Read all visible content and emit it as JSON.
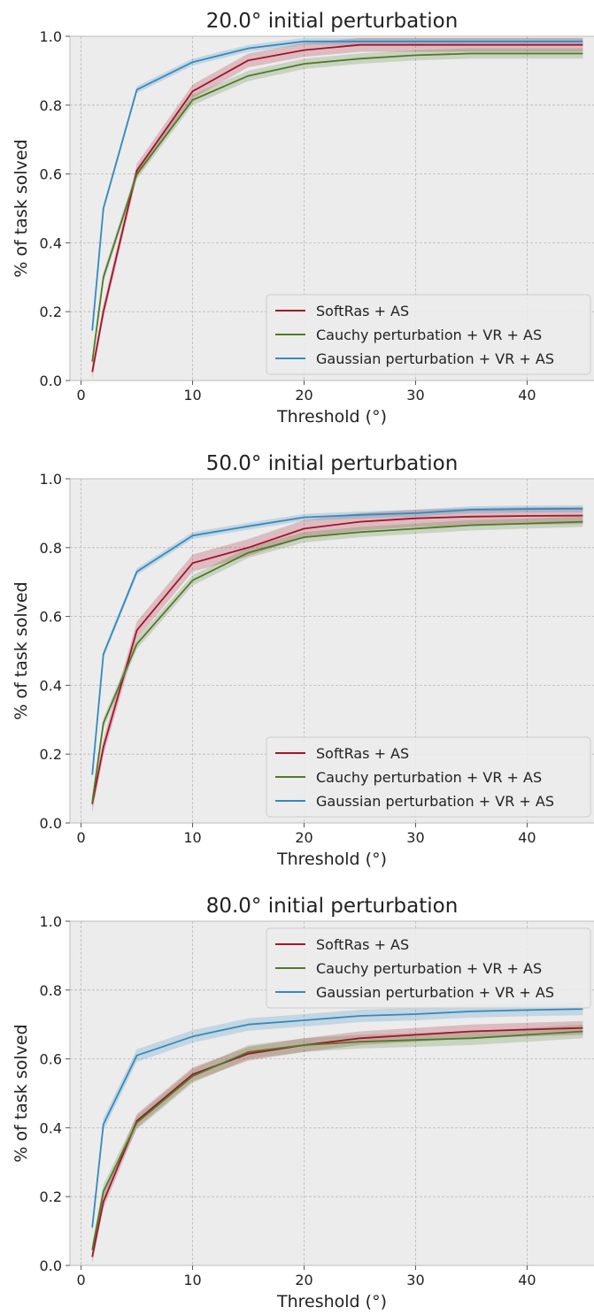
{
  "chart_data": [
    {
      "type": "line",
      "title": "20.0° initial perturbation",
      "xlabel": "Threshold (°)",
      "ylabel": "% of task solved",
      "xlim": [
        -1,
        46
      ],
      "ylim": [
        0,
        1.0
      ],
      "xticks": [
        0,
        10,
        20,
        30,
        40
      ],
      "yticks": [
        0.0,
        0.2,
        0.4,
        0.6,
        0.8,
        1.0
      ],
      "xtick_labels": [
        "0",
        "10",
        "20",
        "30",
        "40"
      ],
      "ytick_labels": [
        "0.0",
        "0.2",
        "0.4",
        "0.6",
        "0.8",
        "1.0"
      ],
      "grid": true,
      "legend_position": "lower-right",
      "x": [
        1,
        2,
        5,
        10,
        15,
        20,
        25,
        30,
        35,
        40,
        45
      ],
      "series": [
        {
          "name": "SoftRas + AS",
          "color": "#a3132b",
          "values": [
            0.025,
            0.2,
            0.61,
            0.84,
            0.93,
            0.96,
            0.975,
            0.975,
            0.975,
            0.975,
            0.975
          ],
          "band": 0.02
        },
        {
          "name": "Cauchy perturbation + VR + AS",
          "color": "#4f7a28",
          "values": [
            0.055,
            0.3,
            0.6,
            0.815,
            0.885,
            0.92,
            0.935,
            0.945,
            0.95,
            0.95,
            0.95
          ],
          "band": 0.015
        },
        {
          "name": "Gaussian perturbation + VR + AS",
          "color": "#348abd",
          "values": [
            0.145,
            0.5,
            0.845,
            0.925,
            0.965,
            0.985,
            0.985,
            0.985,
            0.985,
            0.985,
            0.985
          ],
          "band": 0.01
        }
      ]
    },
    {
      "type": "line",
      "title": "50.0° initial perturbation",
      "xlabel": "Threshold (°)",
      "ylabel": "% of task solved",
      "xlim": [
        -1,
        46
      ],
      "ylim": [
        0,
        1.0
      ],
      "xticks": [
        0,
        10,
        20,
        30,
        40
      ],
      "yticks": [
        0.0,
        0.2,
        0.4,
        0.6,
        0.8,
        1.0
      ],
      "xtick_labels": [
        "0",
        "10",
        "20",
        "30",
        "40"
      ],
      "ytick_labels": [
        "0.0",
        "0.2",
        "0.4",
        "0.6",
        "0.8",
        "1.0"
      ],
      "grid": true,
      "legend_position": "lower-right",
      "x": [
        1,
        2,
        5,
        10,
        15,
        20,
        25,
        30,
        35,
        40,
        45
      ],
      "series": [
        {
          "name": "SoftRas + AS",
          "color": "#a3132b",
          "values": [
            0.055,
            0.22,
            0.56,
            0.755,
            0.8,
            0.855,
            0.875,
            0.885,
            0.89,
            0.892,
            0.893
          ],
          "band": 0.025
        },
        {
          "name": "Cauchy perturbation + VR + AS",
          "color": "#4f7a28",
          "values": [
            0.06,
            0.29,
            0.52,
            0.705,
            0.785,
            0.83,
            0.845,
            0.855,
            0.865,
            0.87,
            0.875
          ],
          "band": 0.015
        },
        {
          "name": "Gaussian perturbation + VR + AS",
          "color": "#348abd",
          "values": [
            0.14,
            0.49,
            0.73,
            0.835,
            0.862,
            0.888,
            0.895,
            0.9,
            0.91,
            0.912,
            0.913
          ],
          "band": 0.01
        }
      ]
    },
    {
      "type": "line",
      "title": "80.0° initial perturbation",
      "xlabel": "Threshold (°)",
      "ylabel": "% of task solved",
      "xlim": [
        -1,
        46
      ],
      "ylim": [
        0,
        1.0
      ],
      "xticks": [
        0,
        10,
        20,
        30,
        40
      ],
      "yticks": [
        0.0,
        0.2,
        0.4,
        0.6,
        0.8,
        1.0
      ],
      "xtick_labels": [
        "0",
        "10",
        "20",
        "30",
        "40"
      ],
      "ytick_labels": [
        "0.0",
        "0.2",
        "0.4",
        "0.6",
        "0.8",
        "1.0"
      ],
      "grid": true,
      "legend_position": "upper-right",
      "x": [
        1,
        2,
        5,
        10,
        15,
        20,
        25,
        30,
        35,
        40,
        45
      ],
      "series": [
        {
          "name": "SoftRas + AS",
          "color": "#a3132b",
          "values": [
            0.025,
            0.185,
            0.42,
            0.555,
            0.615,
            0.64,
            0.66,
            0.67,
            0.68,
            0.685,
            0.69
          ],
          "band": 0.02
        },
        {
          "name": "Cauchy perturbation + VR + AS",
          "color": "#4f7a28",
          "values": [
            0.045,
            0.215,
            0.415,
            0.55,
            0.62,
            0.64,
            0.65,
            0.655,
            0.66,
            0.67,
            0.68
          ],
          "band": 0.02
        },
        {
          "name": "Gaussian perturbation + VR + AS",
          "color": "#348abd",
          "values": [
            0.11,
            0.41,
            0.61,
            0.665,
            0.7,
            0.712,
            0.725,
            0.73,
            0.738,
            0.742,
            0.745
          ],
          "band": 0.018
        }
      ]
    }
  ]
}
